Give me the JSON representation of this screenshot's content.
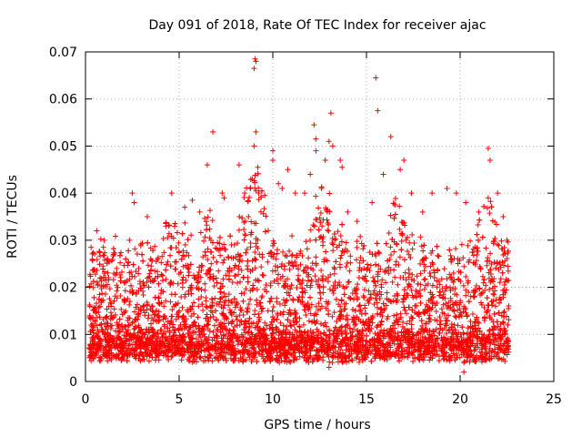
{
  "chart_data": {
    "type": "scatter",
    "title": "Day 091 of 2018, Rate Of TEC Index for receiver ajac",
    "xlabel": "GPS time / hours",
    "ylabel": "ROTI / TECUs",
    "xlim": [
      0,
      25
    ],
    "ylim": [
      0,
      0.07
    ],
    "xticks": [
      "0",
      "5",
      "10",
      "15",
      "20",
      "25"
    ],
    "yticks": [
      "0",
      "0.01",
      "0.02",
      "0.03",
      "0.04",
      "0.05",
      "0.06",
      "0.07"
    ],
    "grid": true,
    "marker": "+",
    "series": [
      {
        "name": "ROTI",
        "color": "#ff0000",
        "summary": {
          "x_range": [
            0.2,
            22.6
          ],
          "typical_y_range": [
            0.004,
            0.02
          ],
          "max_y": 0.0685
        },
        "points": [
          [
            0.3,
            0.0285
          ],
          [
            0.6,
            0.032
          ],
          [
            1.0,
            0.03
          ],
          [
            1.2,
            0.026
          ],
          [
            2.5,
            0.04
          ],
          [
            2.6,
            0.038
          ],
          [
            3.3,
            0.035
          ],
          [
            4.3,
            0.033
          ],
          [
            4.6,
            0.04
          ],
          [
            5.3,
            0.037
          ],
          [
            5.7,
            0.0385
          ],
          [
            6.1,
            0.036
          ],
          [
            6.5,
            0.046
          ],
          [
            6.7,
            0.03
          ],
          [
            6.8,
            0.053
          ],
          [
            7.3,
            0.04
          ],
          [
            7.4,
            0.039
          ],
          [
            8.2,
            0.046
          ],
          [
            8.5,
            0.04
          ],
          [
            8.7,
            0.035
          ],
          [
            8.8,
            0.041
          ],
          [
            8.9,
            0.043
          ],
          [
            9.0,
            0.05
          ],
          [
            9.0,
            0.0665
          ],
          [
            9.05,
            0.0685
          ],
          [
            9.1,
            0.068
          ],
          [
            9.1,
            0.053
          ],
          [
            9.2,
            0.0455
          ],
          [
            10.0,
            0.047
          ],
          [
            10.0,
            0.049
          ],
          [
            10.3,
            0.042
          ],
          [
            10.5,
            0.041
          ],
          [
            10.8,
            0.045
          ],
          [
            11.2,
            0.04
          ],
          [
            11.7,
            0.04
          ],
          [
            12.0,
            0.044
          ],
          [
            12.2,
            0.0545
          ],
          [
            12.3,
            0.0515
          ],
          [
            12.3,
            0.049
          ],
          [
            12.6,
            0.041
          ],
          [
            12.8,
            0.047
          ],
          [
            13.0,
            0.051
          ],
          [
            13.1,
            0.057
          ],
          [
            13.2,
            0.05
          ],
          [
            13.6,
            0.047
          ],
          [
            13.7,
            0.0455
          ],
          [
            14.0,
            0.036
          ],
          [
            14.5,
            0.034
          ],
          [
            15.3,
            0.038
          ],
          [
            15.5,
            0.0645
          ],
          [
            15.6,
            0.0575
          ],
          [
            15.9,
            0.044
          ],
          [
            16.3,
            0.052
          ],
          [
            16.8,
            0.045
          ],
          [
            17.0,
            0.047
          ],
          [
            17.4,
            0.04
          ],
          [
            18.0,
            0.036
          ],
          [
            18.5,
            0.04
          ],
          [
            19.3,
            0.041
          ],
          [
            19.8,
            0.04
          ],
          [
            20.3,
            0.038
          ],
          [
            21.0,
            0.036
          ],
          [
            21.5,
            0.0495
          ],
          [
            21.6,
            0.047
          ],
          [
            21.5,
            0.039
          ],
          [
            22.0,
            0.04
          ],
          [
            22.3,
            0.035
          ],
          [
            22.5,
            0.03
          ],
          [
            13.0,
            0.003
          ],
          [
            20.2,
            0.002
          ]
        ]
      }
    ]
  }
}
